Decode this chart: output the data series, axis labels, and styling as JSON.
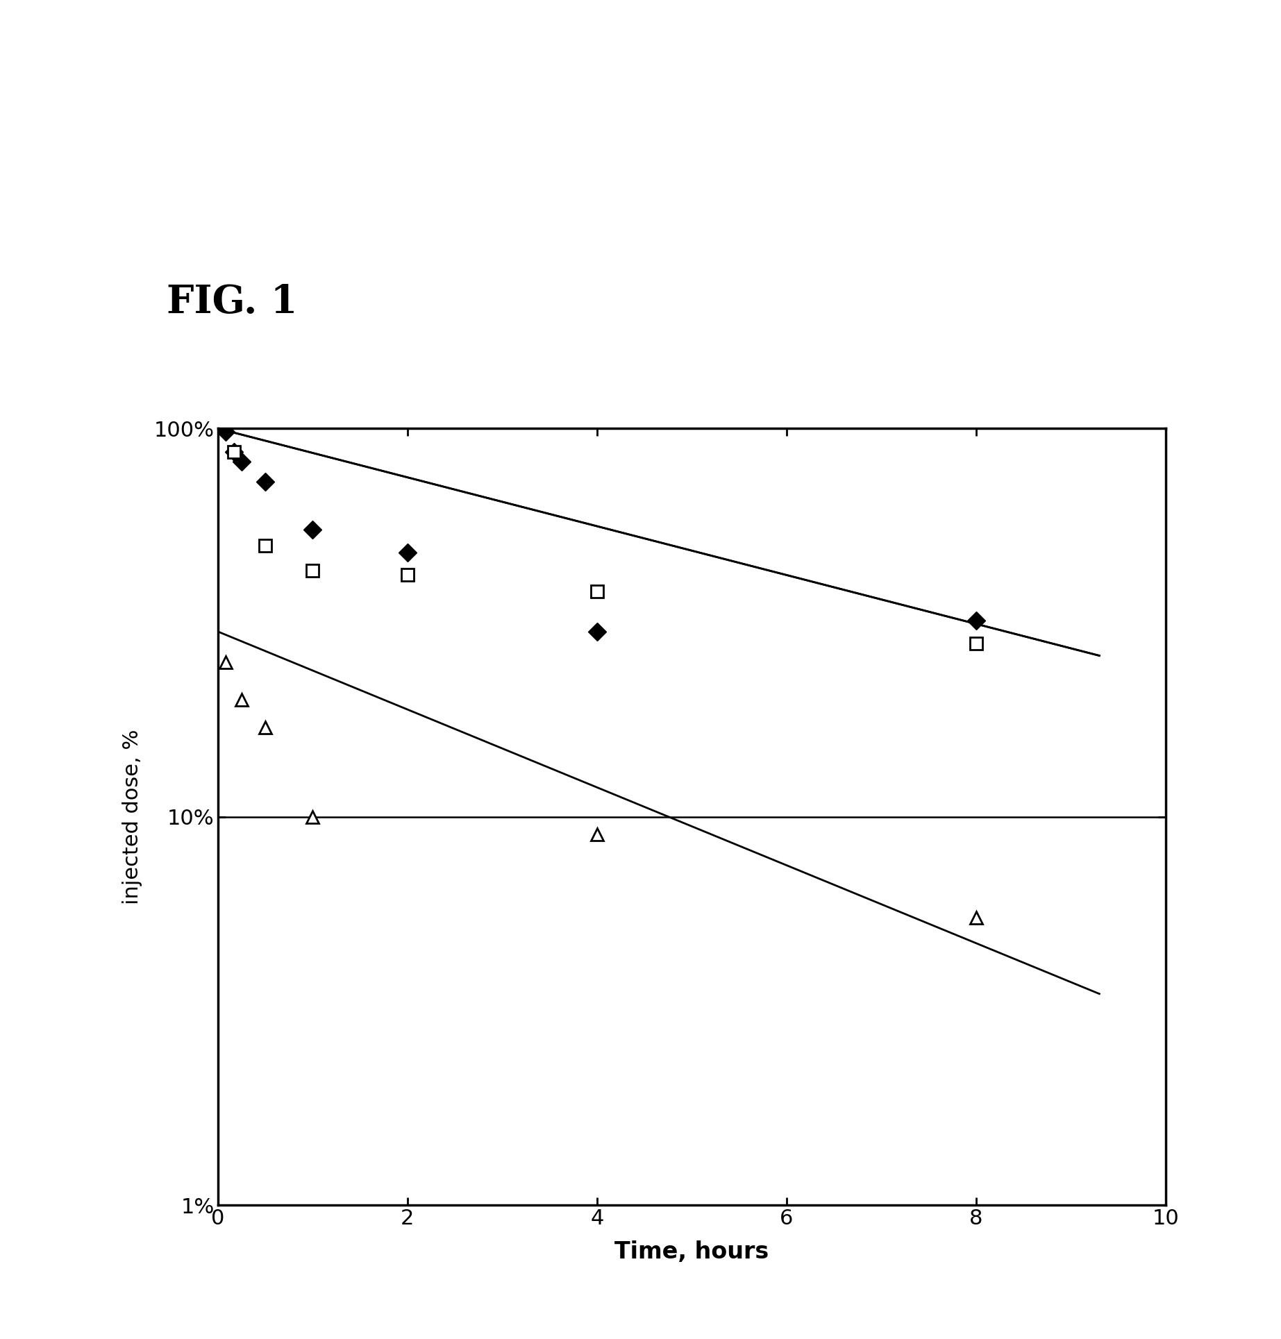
{
  "title": "FIG. 1",
  "xlabel": "Time, hours",
  "ylabel": "injected dose, %",
  "xlim": [
    0,
    10
  ],
  "ylim_log": [
    1,
    100
  ],
  "yticks": [
    1,
    10,
    100
  ],
  "ytick_labels": [
    "1%",
    "10%",
    "100%"
  ],
  "xticks": [
    0,
    2,
    4,
    6,
    8,
    10
  ],
  "hline_y": 10,
  "diamond_x": [
    0.08,
    0.17,
    0.25,
    0.5,
    1.0,
    2.0,
    4.0,
    8.0
  ],
  "diamond_y": [
    98,
    87,
    82,
    73,
    55,
    48,
    30,
    32
  ],
  "square_x": [
    0.17,
    0.5,
    1.0,
    2.0,
    4.0,
    8.0
  ],
  "square_y": [
    87,
    50,
    43,
    42,
    38,
    28
  ],
  "triangle_x": [
    0.08,
    0.25,
    0.5,
    1.0,
    4.0,
    8.0
  ],
  "triangle_y": [
    25,
    20,
    17,
    10,
    9,
    5.5
  ],
  "diamond_line_x": [
    0.0,
    9.3
  ],
  "diamond_line_y": [
    100,
    26
  ],
  "square_line_x": [
    0.0,
    9.3
  ],
  "square_line_y": [
    100,
    26
  ],
  "triangle_line_x": [
    0.0,
    9.3
  ],
  "triangle_line_y": [
    30,
    3.5
  ],
  "line_color": "#000000",
  "marker_color": "#000000",
  "background_color": "#ffffff",
  "fig_width": 18.45,
  "fig_height": 19.29,
  "dpi": 100
}
